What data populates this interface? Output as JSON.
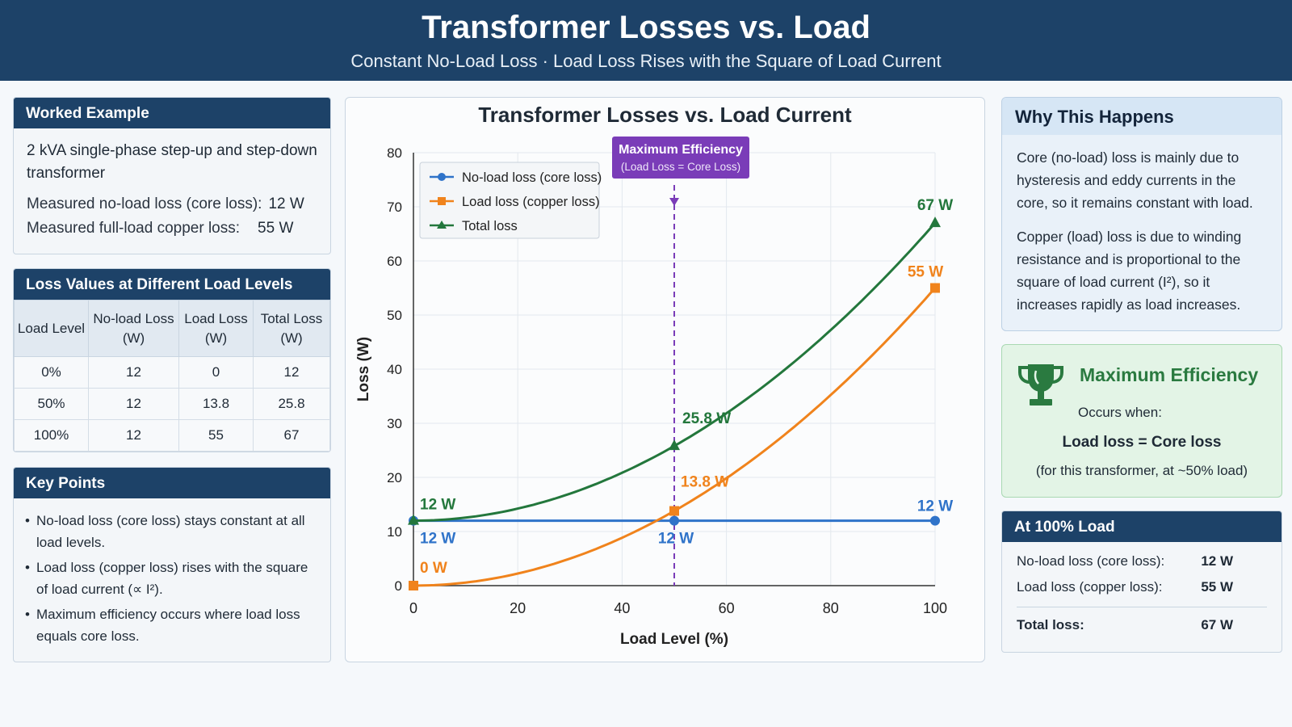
{
  "header": {
    "title": "Transformer Losses vs. Load",
    "subtitle": "Constant No-Load Loss  ·  Load Loss Rises with the Square of Load Current"
  },
  "worked_example": {
    "title": "Worked Example",
    "description": "2 kVA single-phase step-up and step-down transformer",
    "noload_label": "Measured no-load loss (core loss):",
    "noload_value": "12 W",
    "copper_label": "Measured full-load copper loss:",
    "copper_value": "55 W"
  },
  "loss_table": {
    "title": "Loss Values at Different Load Levels",
    "headers": [
      "Load Level",
      "No-load Loss (W)",
      "Load Loss (W)",
      "Total Loss (W)"
    ],
    "rows": [
      [
        "0%",
        "12",
        "0",
        "12"
      ],
      [
        "50%",
        "12",
        "13.8",
        "25.8"
      ],
      [
        "100%",
        "12",
        "55",
        "67"
      ]
    ]
  },
  "key_points": {
    "title": "Key Points",
    "items": [
      "No-load loss (core loss) stays constant at all load levels.",
      "Load loss (copper loss) rises with the square of load current (∝ I²).",
      "Maximum efficiency occurs where load loss equals core loss."
    ]
  },
  "chart_data": {
    "type": "line",
    "title": "Transformer Losses vs. Load Current",
    "xlabel": "Load Level (%)",
    "ylabel": "Loss (W)",
    "xlim": [
      0,
      100
    ],
    "ylim": [
      0,
      80
    ],
    "xticks": [
      0,
      20,
      40,
      60,
      80,
      100
    ],
    "yticks": [
      0,
      10,
      20,
      30,
      40,
      50,
      60,
      70,
      80
    ],
    "grid": true,
    "legend_position": "top-left",
    "x": [
      0,
      50,
      100
    ],
    "series": [
      {
        "name": "No-load loss (core loss)",
        "color": "#2f73c9",
        "marker": "circle",
        "values": [
          12,
          12,
          12
        ],
        "labels": [
          "12 W",
          "12 W",
          "12 W"
        ]
      },
      {
        "name": "Load loss (copper loss)",
        "color": "#f0831c",
        "marker": "square",
        "values": [
          0,
          13.8,
          55
        ],
        "labels": [
          "0 W",
          "13.8 W",
          "55 W"
        ]
      },
      {
        "name": "Total loss",
        "color": "#23773c",
        "marker": "triangle",
        "values": [
          12,
          25.8,
          67
        ],
        "labels": [
          "12 W",
          "25.8 W",
          "67 W"
        ]
      }
    ],
    "annotation": {
      "x": 50,
      "title": "Maximum Efficiency",
      "subtitle": "(Load Loss = Core Loss)",
      "color": "#7a3cb8"
    }
  },
  "why": {
    "title": "Why This Happens",
    "p1": "Core (no-load) loss is mainly due to hysteresis and eddy currents in the core, so it remains constant with load.",
    "p2": "Copper (load) loss is due to winding resistance and is proportional to the square of load current (I²), so it increases rapidly as load increases."
  },
  "max_efficiency": {
    "title": "Maximum Efficiency",
    "occurs": "Occurs when:",
    "condition": "Load loss = Core loss",
    "note": "(for this transformer, at ~50% load)",
    "icon": "trophy-icon"
  },
  "at_full_load": {
    "title": "At 100% Load",
    "noload_label": "No-load loss (core loss):",
    "noload_value": "12 W",
    "load_label": "Load loss (copper loss):",
    "load_value": "55 W",
    "total_label": "Total loss:",
    "total_value": "67 W"
  }
}
